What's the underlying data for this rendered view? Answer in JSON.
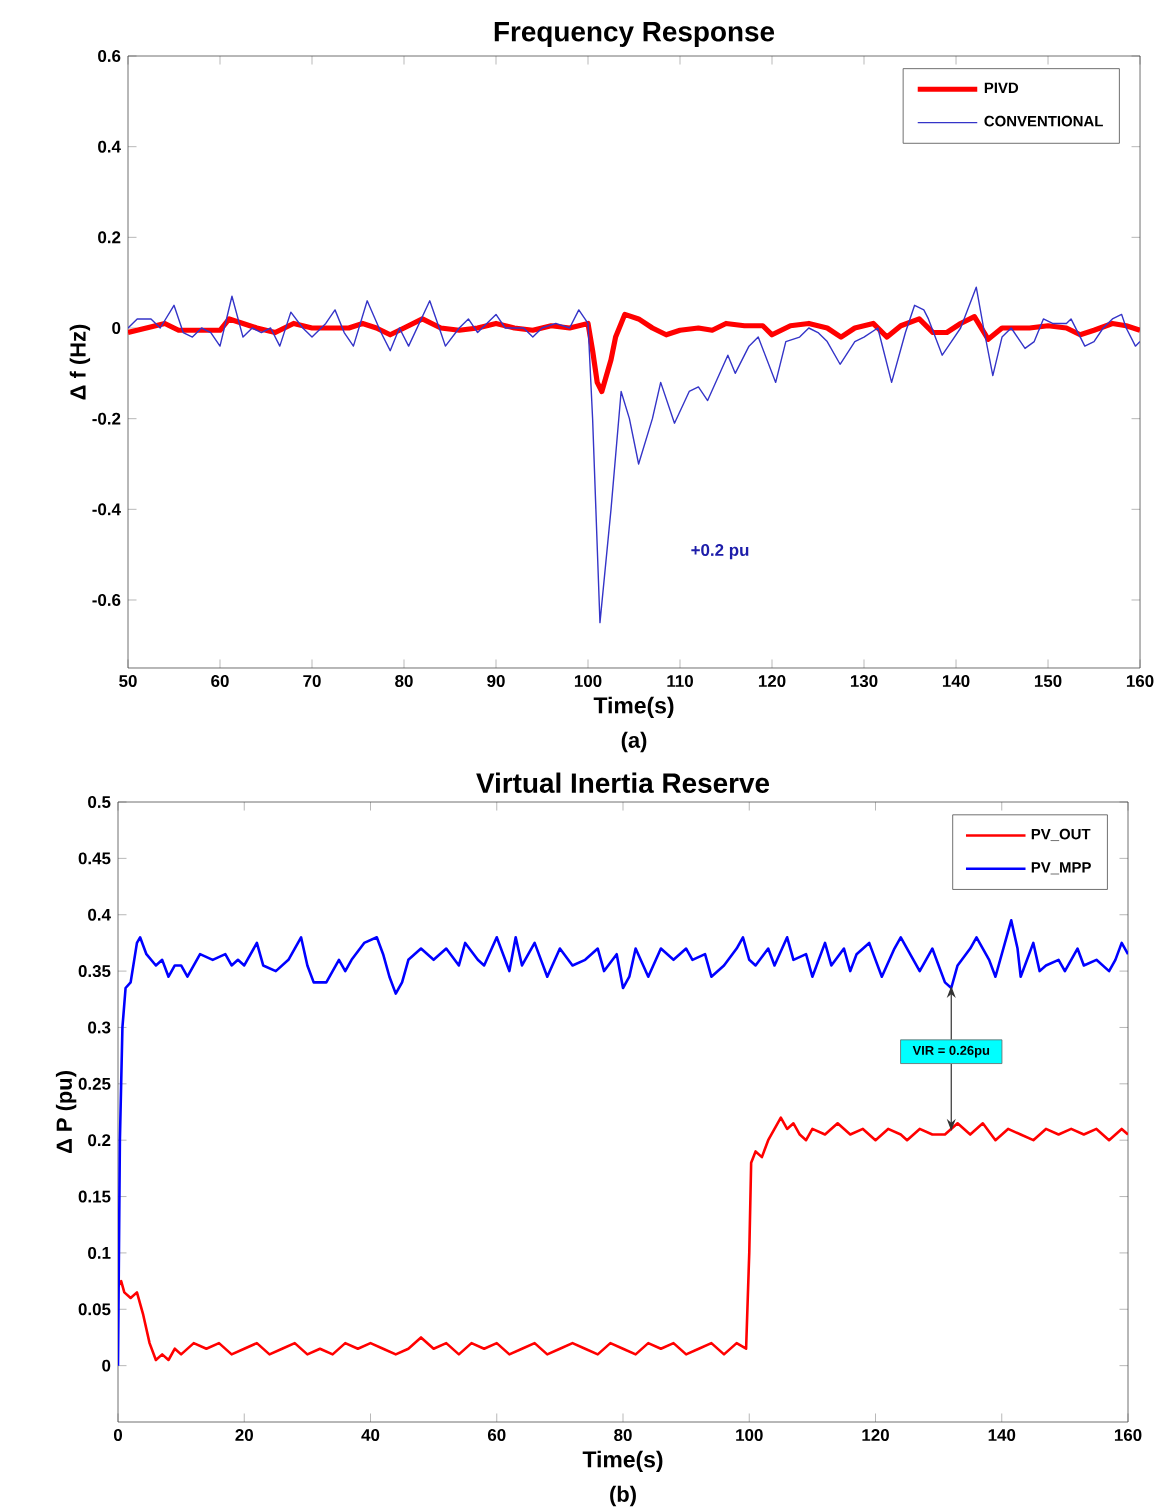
{
  "chart_data": [
    {
      "type": "line",
      "title": "Frequency Response",
      "xlabel": "Time(s)",
      "ylabel": "Δ f (Hz)",
      "xlim": [
        50,
        160
      ],
      "ylim": [
        -0.75,
        0.6
      ],
      "xticks": [
        50,
        60,
        70,
        80,
        90,
        100,
        110,
        120,
        130,
        140,
        150,
        160
      ],
      "yticks": [
        -0.6,
        -0.4,
        -0.2,
        0,
        0.2,
        0.4,
        0.6
      ],
      "legend": "top right",
      "annotations": [
        "+0.2 pu",
        "(a)"
      ],
      "series": [
        {
          "name": "PIVD",
          "color": "#ff0000",
          "x": [
            50,
            52,
            54,
            55.5,
            58,
            60,
            61,
            62.5,
            64,
            66,
            68,
            70,
            72,
            74,
            75.5,
            77,
            78.5,
            80,
            82,
            84,
            86,
            88,
            90,
            92,
            94,
            96,
            98,
            100,
            100.5,
            101,
            101.5,
            102.5,
            103,
            104,
            105.5,
            107,
            108.5,
            110,
            112,
            113.5,
            115,
            117,
            119,
            120,
            122,
            124,
            126,
            127.5,
            129,
            131,
            132.5,
            134,
            136,
            137.5,
            139,
            140.5,
            142,
            143.5,
            145,
            148,
            150,
            152,
            153.5,
            155,
            157,
            158.5,
            160
          ],
          "values": [
            -0.01,
            0.0,
            0.01,
            -0.005,
            -0.005,
            -0.005,
            0.02,
            0.01,
            0.0,
            -0.01,
            0.01,
            0.0,
            0.0,
            0.0,
            0.01,
            0.0,
            -0.015,
            0.0,
            0.02,
            0.0,
            -0.005,
            0.0,
            0.01,
            0.0,
            -0.005,
            0.005,
            0.0,
            0.01,
            -0.05,
            -0.12,
            -0.14,
            -0.07,
            -0.02,
            0.03,
            0.02,
            0.0,
            -0.015,
            -0.005,
            0.0,
            -0.005,
            0.01,
            0.005,
            0.005,
            -0.015,
            0.005,
            0.01,
            0.0,
            -0.02,
            0.0,
            0.01,
            -0.02,
            0.005,
            0.02,
            -0.01,
            -0.01,
            0.01,
            0.025,
            -0.025,
            0.0,
            0.0,
            0.005,
            0.0,
            -0.015,
            -0.005,
            0.01,
            0.005,
            -0.005
          ]
        },
        {
          "name": "CONVENTIONAL",
          "color": "#3434c8",
          "x": [
            50,
            51,
            52.5,
            53.5,
            55,
            56,
            57,
            58,
            59,
            60,
            61.3,
            62.5,
            63.5,
            64.5,
            65.5,
            66.5,
            67.7,
            69,
            70,
            71.5,
            72.5,
            73.5,
            74.5,
            76,
            77.5,
            78.5,
            79.5,
            80.5,
            82.8,
            84,
            84.5,
            86,
            87,
            88,
            89.5,
            90,
            91,
            93,
            94,
            95,
            96.5,
            98,
            99,
            100,
            100.5,
            101.3,
            102.5,
            103.6,
            104.5,
            105.5,
            107,
            107.9,
            109.4,
            111,
            112,
            113,
            115.2,
            116,
            117.5,
            118.5,
            120.4,
            121.5,
            123,
            124,
            125,
            126,
            127.4,
            129,
            130,
            131.5,
            133,
            134.5,
            135.5,
            136.5,
            137,
            138.5,
            139.5,
            140.5,
            142.2,
            143,
            144,
            145,
            146,
            147.5,
            148.5,
            149.5,
            150.5,
            152,
            152.5,
            154,
            155,
            156,
            157,
            158,
            158.5,
            159.5,
            160
          ],
          "values": [
            0.0,
            0.02,
            0.02,
            0.0,
            0.05,
            -0.01,
            -0.02,
            0.0,
            -0.01,
            -0.04,
            0.07,
            -0.02,
            0.0,
            -0.01,
            0.0,
            -0.04,
            0.035,
            0.0,
            -0.02,
            0.01,
            0.04,
            -0.01,
            -0.04,
            0.06,
            -0.01,
            -0.05,
            0.0,
            -0.04,
            0.06,
            -0.01,
            -0.04,
            0.0,
            0.02,
            -0.01,
            0.02,
            0.03,
            0.0,
            0.0,
            -0.02,
            0.0,
            0.01,
            0.0,
            0.04,
            0.01,
            -0.2,
            -0.65,
            -0.4,
            -0.14,
            -0.2,
            -0.3,
            -0.2,
            -0.12,
            -0.21,
            -0.14,
            -0.13,
            -0.16,
            -0.06,
            -0.1,
            -0.04,
            -0.02,
            -0.12,
            -0.03,
            -0.02,
            0.0,
            -0.01,
            -0.03,
            -0.08,
            -0.03,
            -0.02,
            0.0,
            -0.12,
            -0.01,
            0.05,
            0.04,
            0.02,
            -0.06,
            -0.03,
            0.0,
            0.09,
            0.0,
            -0.105,
            -0.02,
            0.0,
            -0.045,
            -0.03,
            0.02,
            0.01,
            0.01,
            0.02,
            -0.04,
            -0.03,
            0.0,
            0.02,
            0.03,
            0.0,
            -0.04,
            -0.03
          ]
        }
      ]
    },
    {
      "type": "line",
      "title": "Virtual Inertia Reserve",
      "xlabel": "Time(s)",
      "ylabel": "Δ P (pu)",
      "xlim": [
        0,
        160
      ],
      "ylim": [
        -0.05,
        0.5
      ],
      "xticks": [
        0,
        20,
        40,
        60,
        80,
        100,
        120,
        140,
        160
      ],
      "yticks": [
        0,
        0.05,
        0.1,
        0.15,
        0.2,
        0.25,
        0.3,
        0.35,
        0.4,
        0.45,
        0.5
      ],
      "legend": "top right",
      "annotations": [
        {
          "text": "VIR = 0.26pu",
          "x": 132,
          "y": 0.335
        },
        "(b)"
      ],
      "series": [
        {
          "name": "PV_OUT",
          "color": "#ff0000",
          "x": [
            0,
            0.5,
            1,
            2,
            3,
            4,
            5,
            6,
            7,
            8,
            9,
            10,
            12,
            14,
            16,
            18,
            20,
            22,
            24,
            26,
            28,
            30,
            32,
            34,
            36,
            38,
            40,
            42,
            44,
            46,
            48,
            50,
            52,
            54,
            56,
            58,
            60,
            62,
            64,
            66,
            68,
            70,
            72,
            74,
            76,
            78,
            80,
            82,
            84,
            86,
            88,
            90,
            92,
            94,
            96,
            98,
            99.5,
            100,
            100.3,
            101,
            102,
            103,
            104,
            105,
            106,
            107,
            108,
            109,
            110,
            112,
            114,
            116,
            118,
            120,
            122,
            124,
            125,
            127,
            129,
            131,
            133,
            135,
            137,
            139,
            141,
            143,
            145,
            147,
            149,
            151,
            153,
            155,
            157,
            159,
            160
          ],
          "values": [
            0.07,
            0.075,
            0.065,
            0.06,
            0.065,
            0.045,
            0.02,
            0.005,
            0.01,
            0.005,
            0.015,
            0.01,
            0.02,
            0.015,
            0.02,
            0.01,
            0.015,
            0.02,
            0.01,
            0.015,
            0.02,
            0.01,
            0.015,
            0.01,
            0.02,
            0.015,
            0.02,
            0.015,
            0.01,
            0.015,
            0.025,
            0.015,
            0.02,
            0.01,
            0.02,
            0.015,
            0.02,
            0.01,
            0.015,
            0.02,
            0.01,
            0.015,
            0.02,
            0.015,
            0.01,
            0.02,
            0.015,
            0.01,
            0.02,
            0.015,
            0.02,
            0.01,
            0.015,
            0.02,
            0.01,
            0.02,
            0.015,
            0.1,
            0.18,
            0.19,
            0.185,
            0.2,
            0.21,
            0.22,
            0.21,
            0.215,
            0.205,
            0.2,
            0.21,
            0.205,
            0.215,
            0.205,
            0.21,
            0.2,
            0.21,
            0.205,
            0.2,
            0.21,
            0.205,
            0.205,
            0.215,
            0.205,
            0.215,
            0.2,
            0.21,
            0.205,
            0.2,
            0.21,
            0.205,
            0.21,
            0.205,
            0.21,
            0.2,
            0.21,
            0.205
          ]
        },
        {
          "name": "PV_MPP",
          "color": "#0000ff",
          "x": [
            0,
            0.3,
            0.7,
            1.2,
            2,
            3,
            3.5,
            4.5,
            6,
            7,
            8,
            9,
            10,
            11,
            13,
            15,
            17,
            18,
            19,
            20,
            22,
            23,
            25,
            27,
            29,
            30,
            31,
            33,
            35,
            36,
            37,
            39,
            41,
            42,
            43,
            44,
            45,
            46,
            48,
            50,
            52,
            54,
            55,
            57,
            58,
            60,
            62,
            63,
            64,
            66,
            68,
            70,
            72,
            74,
            76,
            77,
            79,
            80,
            81,
            82,
            84,
            86,
            88,
            90,
            91,
            93,
            94,
            96,
            98,
            99,
            100,
            101,
            103,
            104,
            106,
            107,
            109,
            110,
            112,
            113,
            115,
            116,
            117,
            119,
            120,
            121,
            123,
            124,
            126,
            127,
            129,
            130,
            131,
            132,
            133,
            135,
            136,
            138,
            139,
            140,
            141,
            141.5,
            142.5,
            143,
            145,
            146,
            147,
            149,
            150,
            152,
            153,
            155,
            157,
            158,
            159,
            160
          ],
          "values": [
            0.0,
            0.2,
            0.3,
            0.335,
            0.34,
            0.375,
            0.38,
            0.365,
            0.355,
            0.36,
            0.345,
            0.355,
            0.355,
            0.345,
            0.365,
            0.36,
            0.365,
            0.355,
            0.36,
            0.355,
            0.375,
            0.355,
            0.35,
            0.36,
            0.38,
            0.355,
            0.34,
            0.34,
            0.36,
            0.35,
            0.36,
            0.375,
            0.38,
            0.365,
            0.345,
            0.33,
            0.34,
            0.36,
            0.37,
            0.36,
            0.37,
            0.355,
            0.375,
            0.36,
            0.355,
            0.38,
            0.35,
            0.38,
            0.355,
            0.375,
            0.345,
            0.37,
            0.355,
            0.36,
            0.37,
            0.35,
            0.365,
            0.335,
            0.345,
            0.37,
            0.345,
            0.37,
            0.36,
            0.37,
            0.36,
            0.365,
            0.345,
            0.355,
            0.37,
            0.38,
            0.36,
            0.355,
            0.37,
            0.355,
            0.38,
            0.36,
            0.365,
            0.345,
            0.375,
            0.355,
            0.37,
            0.35,
            0.365,
            0.375,
            0.36,
            0.345,
            0.37,
            0.38,
            0.36,
            0.35,
            0.37,
            0.355,
            0.34,
            0.335,
            0.355,
            0.37,
            0.38,
            0.36,
            0.345,
            0.365,
            0.385,
            0.395,
            0.37,
            0.345,
            0.375,
            0.35,
            0.355,
            0.36,
            0.35,
            0.37,
            0.355,
            0.36,
            0.35,
            0.36,
            0.375,
            0.365
          ]
        }
      ]
    }
  ]
}
